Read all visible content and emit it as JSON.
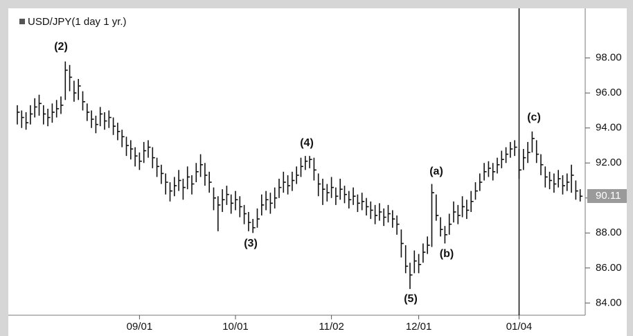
{
  "chart_data": {
    "type": "ohlc",
    "title": "USD/JPY(1 day  1 yr.)",
    "color": "#111111",
    "categories": [
      null,
      null,
      null,
      null,
      null,
      null,
      null,
      null,
      null,
      null,
      null,
      null,
      null,
      null,
      null,
      null,
      null,
      null,
      null,
      null,
      null,
      null,
      null,
      null,
      null,
      null,
      null,
      null,
      "09/01",
      null,
      null,
      null,
      null,
      null,
      null,
      null,
      null,
      null,
      null,
      null,
      null,
      null,
      null,
      null,
      null,
      null,
      null,
      null,
      null,
      null,
      "10/01",
      null,
      null,
      null,
      null,
      null,
      null,
      null,
      null,
      null,
      null,
      null,
      null,
      null,
      null,
      null,
      null,
      null,
      null,
      null,
      null,
      null,
      "11/02",
      null,
      null,
      null,
      null,
      null,
      null,
      null,
      null,
      null,
      null,
      null,
      null,
      null,
      null,
      null,
      null,
      null,
      null,
      null,
      "12/01",
      null,
      null,
      null,
      null,
      null,
      null,
      null,
      null,
      null,
      null,
      null,
      null,
      null,
      null,
      null,
      null,
      null,
      null,
      null,
      null,
      null,
      null,
      "01/04",
      null,
      null,
      null,
      null,
      null,
      null,
      null,
      null,
      null,
      null,
      null,
      null,
      null,
      null
    ],
    "high": [
      95.3,
      95.0,
      94.9,
      95.3,
      95.7,
      95.9,
      95.3,
      95.1,
      95.4,
      95.6,
      95.8,
      97.8,
      97.6,
      96.7,
      96.8,
      96.1,
      95.4,
      95.0,
      94.7,
      95.2,
      94.9,
      95.0,
      94.6,
      94.3,
      93.9,
      93.5,
      93.3,
      92.9,
      92.6,
      93.2,
      93.3,
      92.9,
      92.3,
      91.9,
      91.4,
      90.9,
      91.2,
      91.6,
      91.1,
      91.8,
      91.3,
      92.0,
      92.5,
      92.0,
      91.5,
      90.6,
      90.1,
      90.5,
      90.7,
      90.2,
      90.4,
      90.1,
      89.6,
      89.2,
      88.8,
      89.4,
      90.2,
      90.4,
      90.3,
      90.6,
      91.1,
      91.5,
      91.3,
      91.5,
      91.8,
      92.3,
      92.4,
      92.4,
      92.3,
      91.4,
      91.1,
      90.8,
      91.2,
      90.6,
      91.1,
      90.7,
      90.4,
      90.6,
      90.2,
      90.3,
      90.0,
      89.8,
      89.6,
      89.7,
      89.4,
      89.6,
      89.3,
      89.0,
      88.2,
      87.3,
      86.3,
      87.0,
      86.8,
      87.4,
      87.8,
      90.8,
      90.2,
      88.9,
      88.4,
      89.1,
      89.8,
      89.6,
      90.1,
      89.9,
      90.4,
      90.9,
      91.4,
      92.0,
      92.1,
      92.0,
      92.3,
      92.7,
      92.9,
      93.2,
      93.3,
      92.8,
      92.8,
      93.2,
      93.8,
      93.3,
      92.5,
      91.8,
      91.5,
      91.4,
      91.6,
      91.3,
      91.4,
      91.9,
      91.0,
      90.5
    ],
    "low": [
      94.2,
      94.0,
      93.9,
      94.2,
      94.6,
      94.7,
      94.2,
      94.1,
      94.3,
      94.6,
      94.8,
      95.6,
      96.1,
      95.5,
      95.6,
      95.0,
      94.4,
      94.0,
      93.7,
      94.1,
      93.9,
      94.0,
      93.6,
      93.3,
      92.9,
      92.4,
      92.2,
      91.8,
      91.6,
      92.0,
      92.3,
      91.7,
      91.2,
      90.8,
      90.2,
      89.8,
      90.1,
      90.4,
      89.9,
      90.5,
      90.2,
      90.9,
      91.2,
      90.7,
      90.3,
      89.3,
      88.1,
      89.2,
      89.6,
      89.1,
      89.3,
      88.9,
      88.5,
      88.1,
      88.0,
      88.3,
      89.0,
      89.3,
      89.1,
      89.4,
      90.0,
      90.3,
      90.2,
      90.4,
      90.8,
      91.2,
      91.6,
      91.7,
      91.0,
      90.1,
      89.6,
      89.8,
      90.0,
      89.6,
      89.9,
      89.7,
      89.4,
      89.6,
      89.2,
      89.3,
      89.0,
      88.8,
      88.5,
      88.7,
      88.4,
      88.6,
      88.3,
      87.9,
      86.6,
      85.7,
      84.8,
      85.7,
      85.7,
      86.3,
      86.8,
      87.2,
      88.7,
      87.8,
      87.4,
      87.9,
      88.6,
      88.5,
      88.9,
      88.8,
      89.2,
      89.9,
      90.4,
      91.0,
      91.2,
      91.0,
      91.4,
      91.7,
      92.0,
      92.3,
      92.4,
      91.1,
      91.6,
      92.0,
      92.6,
      92.0,
      91.3,
      90.6,
      90.5,
      90.3,
      90.6,
      90.2,
      90.4,
      90.3,
      89.9,
      89.8
    ],
    "close": [
      94.9,
      94.6,
      94.3,
      94.8,
      95.2,
      95.4,
      94.8,
      94.6,
      94.9,
      95.1,
      95.3,
      97.3,
      96.9,
      96.0,
      96.4,
      95.5,
      94.9,
      94.5,
      94.2,
      94.8,
      94.4,
      94.6,
      94.1,
      93.8,
      93.5,
      93.0,
      92.8,
      92.4,
      92.1,
      92.7,
      92.9,
      92.3,
      91.8,
      91.4,
      90.9,
      90.4,
      90.7,
      91.0,
      90.6,
      91.2,
      90.8,
      91.5,
      91.9,
      91.3,
      90.9,
      90.0,
      89.6,
      89.9,
      90.2,
      89.7,
      89.9,
      89.5,
      89.1,
      88.6,
      88.3,
      88.8,
      89.6,
      89.9,
      89.7,
      90.0,
      90.6,
      90.9,
      90.7,
      91.0,
      91.3,
      91.8,
      92.1,
      92.2,
      91.6,
      90.8,
      90.5,
      90.3,
      90.6,
      90.1,
      90.5,
      90.2,
      89.9,
      90.1,
      89.7,
      89.8,
      89.5,
      89.3,
      89.0,
      89.2,
      88.9,
      89.1,
      88.8,
      88.5,
      87.4,
      86.1,
      85.6,
      86.4,
      86.2,
      86.9,
      87.3,
      90.3,
      89.0,
      88.2,
      87.9,
      88.5,
      89.2,
      89.0,
      89.5,
      89.3,
      89.8,
      90.4,
      90.9,
      91.5,
      91.7,
      91.5,
      91.9,
      92.2,
      92.5,
      92.8,
      92.9,
      91.6,
      92.3,
      92.6,
      93.4,
      92.5,
      91.9,
      91.2,
      91.0,
      90.8,
      91.1,
      90.7,
      90.9,
      91.3,
      90.4,
      90.1
    ],
    "last_price": 90.11,
    "annotations": [
      "(2)",
      "(3)",
      "(4)",
      "(5)",
      "(a)",
      "(b)",
      "(c)"
    ],
    "ylim": [
      83.3,
      100.6
    ],
    "yticks": [
      {
        "value": 84,
        "label": "84.00"
      },
      {
        "value": 86,
        "label": "86.00"
      },
      {
        "value": 88,
        "label": "88.00"
      },
      {
        "value": 90,
        "label": "90.00"
      },
      {
        "value": 92,
        "label": "92.00"
      },
      {
        "value": 94,
        "label": "94.00"
      },
      {
        "value": 96,
        "label": "96.00"
      },
      {
        "value": 98,
        "label": "98.00"
      }
    ]
  }
}
